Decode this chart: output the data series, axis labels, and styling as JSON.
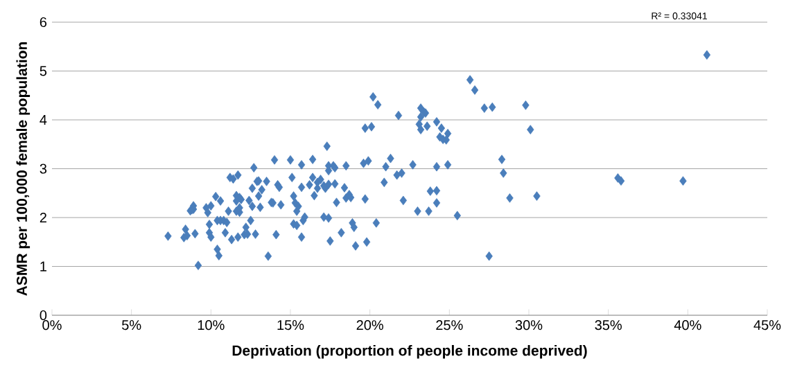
{
  "chart_data": {
    "type": "scatter",
    "xlabel": "Deprivation (proportion of people income deprived)",
    "ylabel": "ASMR per 100,000 female population",
    "annotations": [
      "R² = 0.33041"
    ],
    "x": [
      7.3,
      8.3,
      8.4,
      8.5,
      8.7,
      8.8,
      8.9,
      8.9,
      9.0,
      9.2,
      9.7,
      9.8,
      9.9,
      10.0,
      9.9,
      10.0,
      10.3,
      10.4,
      10.4,
      10.5,
      10.6,
      10.6,
      10.8,
      10.9,
      11.0,
      11.1,
      11.2,
      11.3,
      11.4,
      11.6,
      11.6,
      11.6,
      11.7,
      11.7,
      11.8,
      11.8,
      11.8,
      11.9,
      12.1,
      12.2,
      12.3,
      12.4,
      12.5,
      12.6,
      12.6,
      12.7,
      12.8,
      12.9,
      13.0,
      13.1,
      13.0,
      13.2,
      13.5,
      13.6,
      13.8,
      13.9,
      14.0,
      14.1,
      14.2,
      14.3,
      14.4,
      15.0,
      15.1,
      15.2,
      15.2,
      15.3,
      15.4,
      15.4,
      15.5,
      15.7,
      15.7,
      15.7,
      15.8,
      15.9,
      16.2,
      16.4,
      16.4,
      16.5,
      16.7,
      16.7,
      16.9,
      17.1,
      17.1,
      17.2,
      17.3,
      17.4,
      17.4,
      17.4,
      17.4,
      17.5,
      17.7,
      17.8,
      17.8,
      17.9,
      18.2,
      18.4,
      18.5,
      18.5,
      18.7,
      18.8,
      18.9,
      19.0,
      19.1,
      19.6,
      19.7,
      19.7,
      19.8,
      19.9,
      20.1,
      20.2,
      20.4,
      20.5,
      20.9,
      21.0,
      21.3,
      21.7,
      21.8,
      22.0,
      22.1,
      22.7,
      23.0,
      23.1,
      23.2,
      23.2,
      23.2,
      23.4,
      23.5,
      23.6,
      23.7,
      23.8,
      24.2,
      24.2,
      24.2,
      24.2,
      24.4,
      24.5,
      24.6,
      24.8,
      24.9,
      24.9,
      25.5,
      26.3,
      26.6,
      27.2,
      27.7,
      27.5,
      28.3,
      28.4,
      28.8,
      29.8,
      30.1,
      30.5,
      35.6,
      35.8,
      39.7,
      41.2
    ],
    "values": [
      1.62,
      1.59,
      1.76,
      1.63,
      2.14,
      2.16,
      2.24,
      2.17,
      1.67,
      1.02,
      2.2,
      2.1,
      1.69,
      2.24,
      1.86,
      1.6,
      2.43,
      1.94,
      1.35,
      1.22,
      1.94,
      2.34,
      1.94,
      1.69,
      1.9,
      2.13,
      2.82,
      1.55,
      2.79,
      2.34,
      2.13,
      2.45,
      2.87,
      1.6,
      2.41,
      2.11,
      2.2,
      2.37,
      1.65,
      1.8,
      1.66,
      2.35,
      1.94,
      2.6,
      2.23,
      3.02,
      1.66,
      2.74,
      2.44,
      2.21,
      2.75,
      2.57,
      2.74,
      1.21,
      2.31,
      2.3,
      3.18,
      1.65,
      2.67,
      2.62,
      2.26,
      3.18,
      2.82,
      2.44,
      1.87,
      2.3,
      2.13,
      1.84,
      2.23,
      3.08,
      1.6,
      2.62,
      1.94,
      2.01,
      2.67,
      3.19,
      2.82,
      2.45,
      2.6,
      2.72,
      2.78,
      2.65,
      2.01,
      2.6,
      3.46,
      2.96,
      3.06,
      2.68,
      1.99,
      1.52,
      3.06,
      2.69,
      3.02,
      2.31,
      1.69,
      2.61,
      3.06,
      2.4,
      2.47,
      2.41,
      1.89,
      1.8,
      1.42,
      3.11,
      3.83,
      2.38,
      1.5,
      3.16,
      3.86,
      4.47,
      1.89,
      4.31,
      2.72,
      3.04,
      3.21,
      2.87,
      4.09,
      2.91,
      2.35,
      3.08,
      2.13,
      3.91,
      4.06,
      4.24,
      3.8,
      4.16,
      4.14,
      3.87,
      2.13,
      2.54,
      2.3,
      2.55,
      3.96,
      3.04,
      3.65,
      3.83,
      3.6,
      3.59,
      3.08,
      3.72,
      2.04,
      4.82,
      4.61,
      4.24,
      4.26,
      1.21,
      3.19,
      2.91,
      2.4,
      4.3,
      3.8,
      2.44,
      2.81,
      2.75,
      2.75,
      5.33
    ],
    "color": "#4a7ebb",
    "marker": "diamond",
    "xlim": [
      0,
      45
    ],
    "xticks": [
      {
        "value": 0,
        "label": "0%"
      },
      {
        "value": 5,
        "label": "5%"
      },
      {
        "value": 10,
        "label": "10%"
      },
      {
        "value": 15,
        "label": "15%"
      },
      {
        "value": 20,
        "label": "20%"
      },
      {
        "value": 25,
        "label": "25%"
      },
      {
        "value": 30,
        "label": "30%"
      },
      {
        "value": 35,
        "label": "35%"
      },
      {
        "value": 40,
        "label": "40%"
      },
      {
        "value": 45,
        "label": "45%"
      }
    ],
    "ylim": [
      0,
      6
    ],
    "yticks": [
      0,
      1,
      2,
      3,
      4,
      5,
      6
    ],
    "grid": "y"
  }
}
